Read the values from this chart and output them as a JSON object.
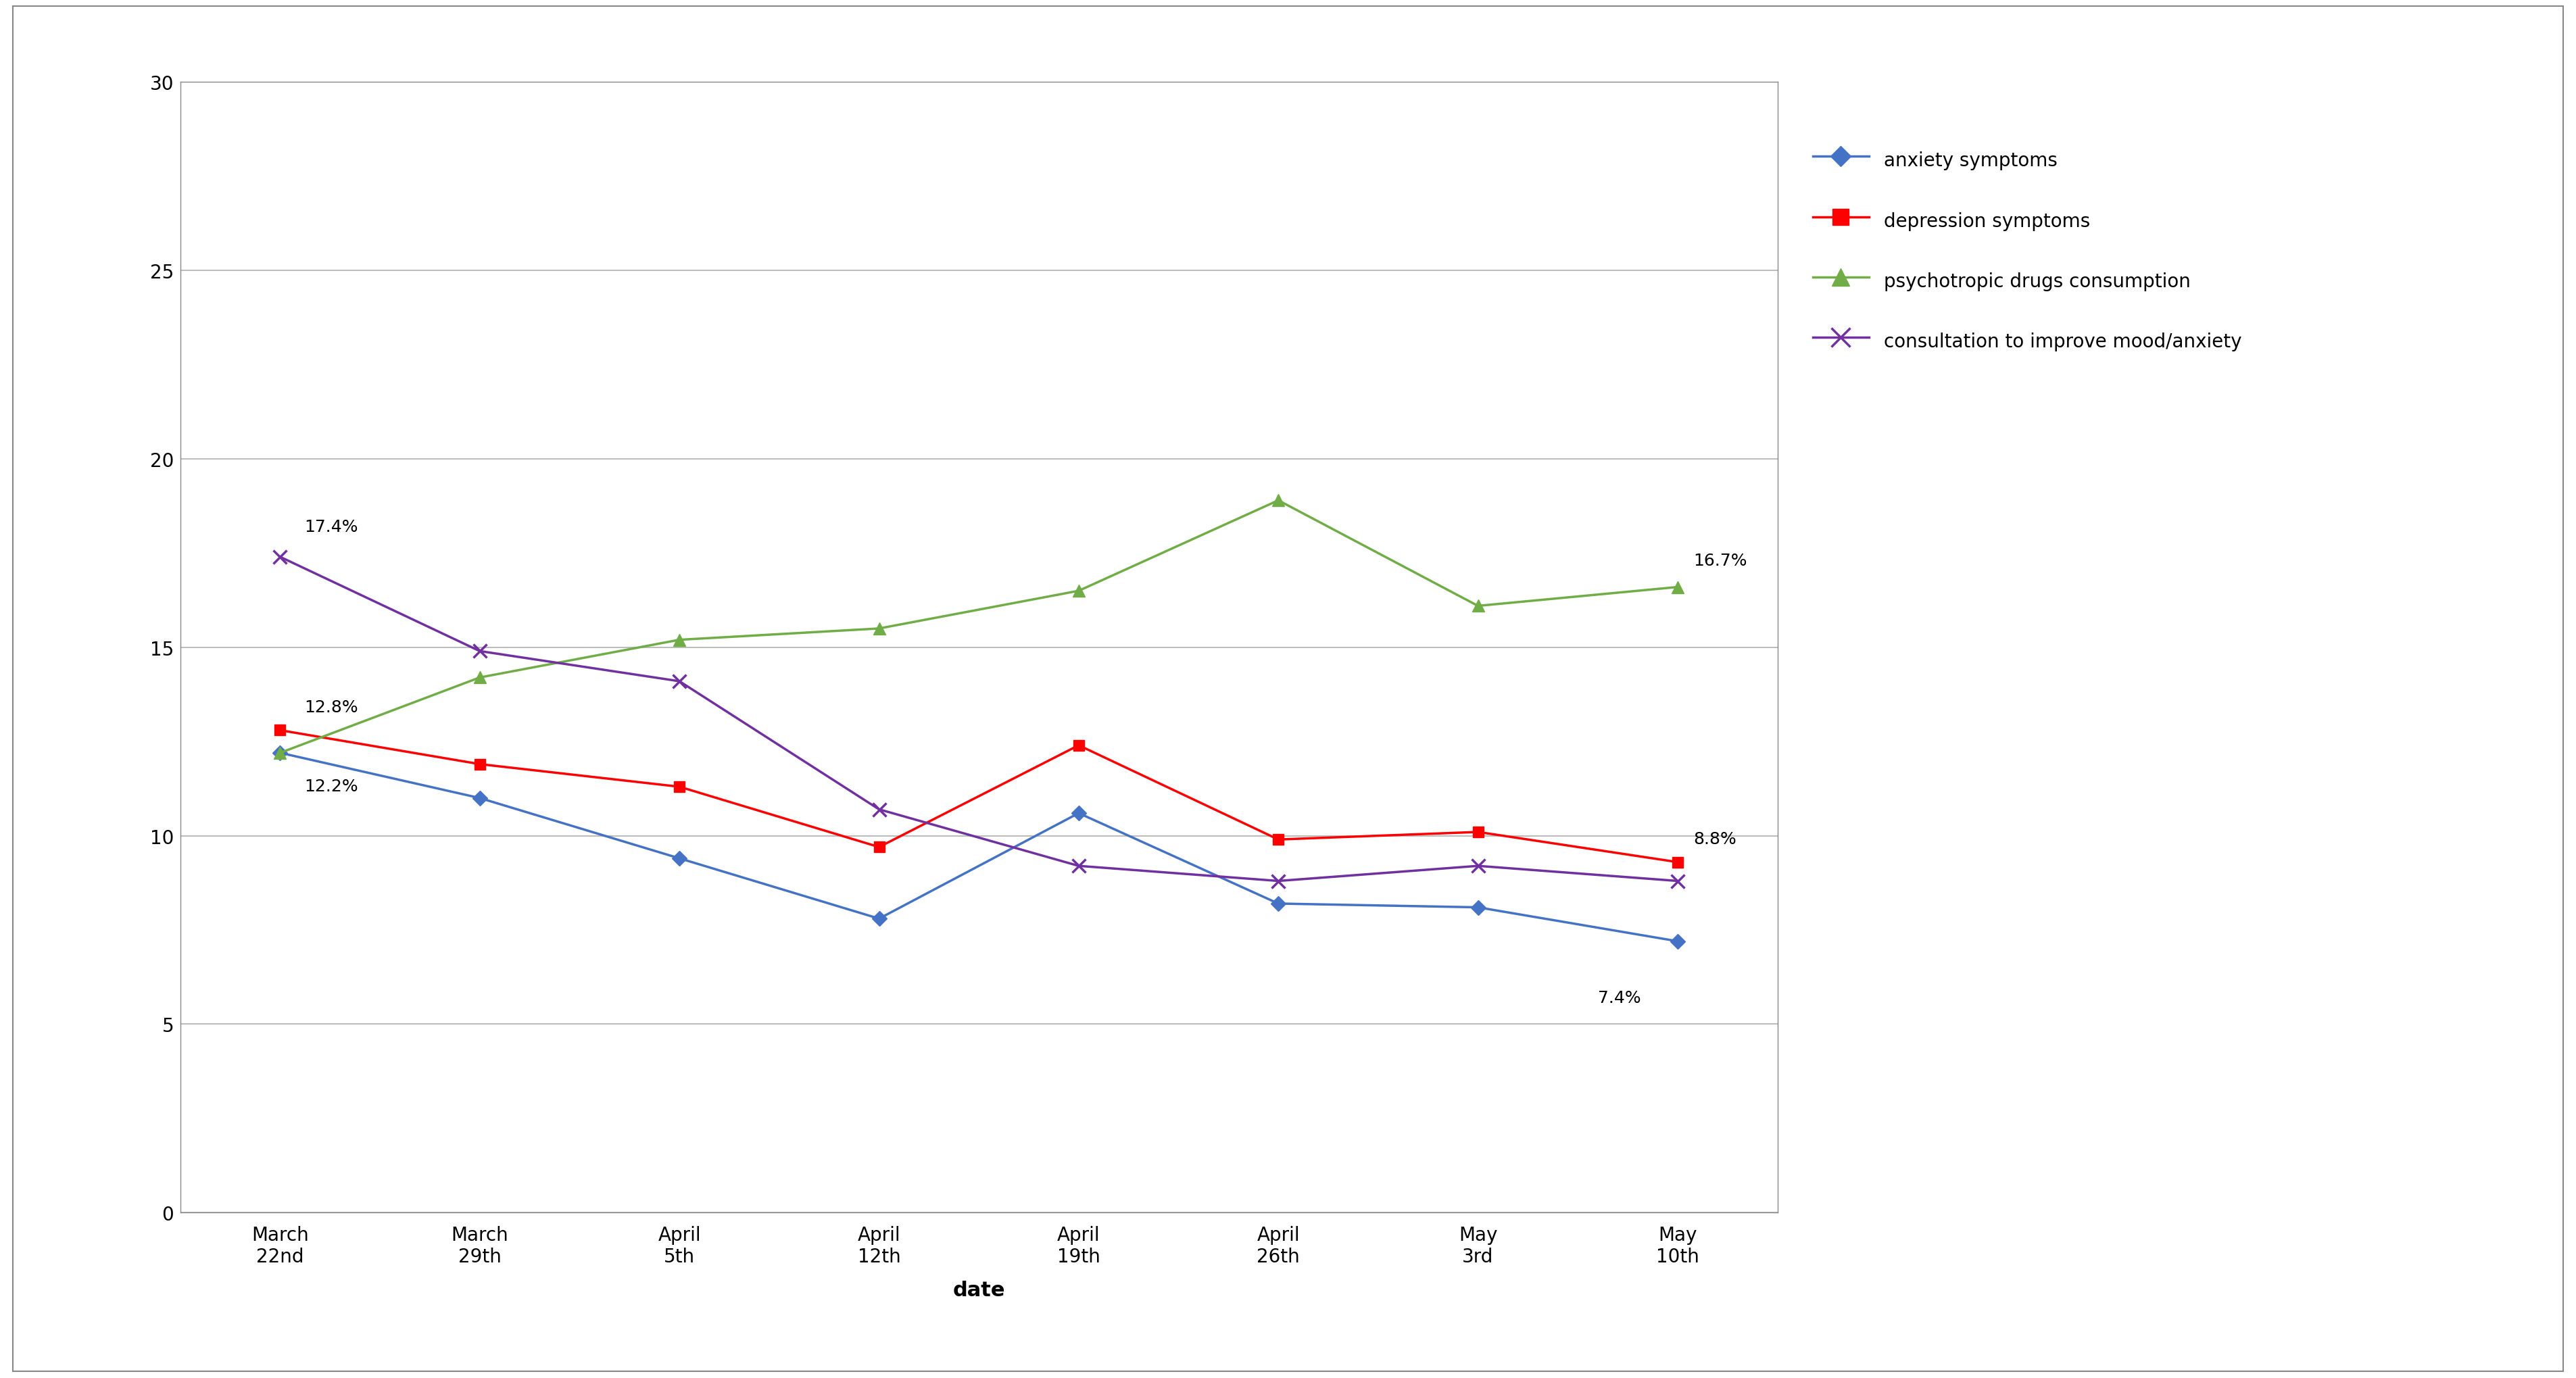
{
  "x_labels": [
    "March\n22nd",
    "March\n29th",
    "April\n5th",
    "April\n12th",
    "April\n19th",
    "April\n26th",
    "May\n3rd",
    "May\n10th"
  ],
  "anxiety": [
    12.2,
    11.0,
    9.4,
    7.8,
    10.6,
    8.2,
    8.1,
    7.2
  ],
  "depression": [
    12.8,
    11.9,
    11.3,
    9.7,
    12.4,
    9.9,
    10.1,
    9.3
  ],
  "psychotropic": [
    12.2,
    14.2,
    15.2,
    15.5,
    16.5,
    18.9,
    16.1,
    16.6
  ],
  "consultation": [
    17.4,
    14.9,
    14.1,
    10.7,
    9.2,
    8.8,
    9.2,
    8.8
  ],
  "anxiety_color": "#4472C4",
  "depression_color": "#FF0000",
  "psychotropic_color": "#70AD47",
  "consultation_color": "#7030A0",
  "xlabel": "date",
  "ylim": [
    0,
    30
  ],
  "yticks": [
    0,
    5,
    10,
    15,
    20,
    25,
    30
  ],
  "background_color": "#ffffff",
  "grid_color": "#b0b0b0",
  "legend_labels": [
    "anxiety symptoms",
    "depression symptoms",
    "psychotropic drugs consumption",
    "consultation to improve mood/anxiety"
  ],
  "title": "",
  "annot_fontsize": 18,
  "tick_fontsize": 20,
  "xlabel_fontsize": 22,
  "legend_fontsize": 20
}
